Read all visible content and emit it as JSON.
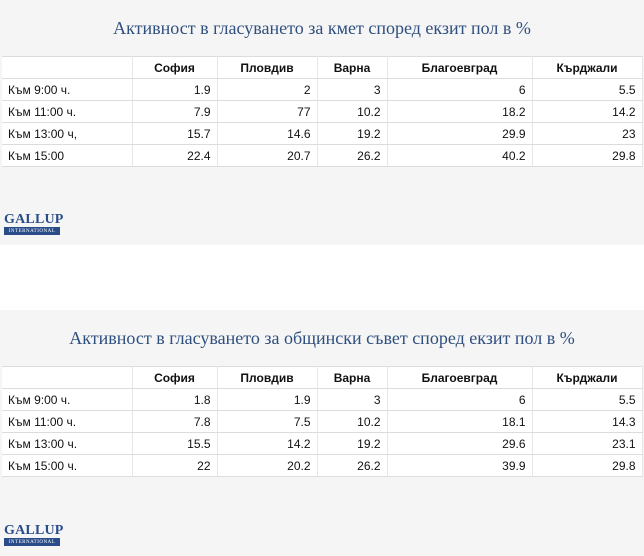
{
  "sections": [
    {
      "title": "Активност в гласуването за кмет според екзит пол в %",
      "table": {
        "header": [
          "София",
          "Пловдив",
          "Варна",
          "Благоевград",
          "Кърджали"
        ],
        "rows": [
          [
            "Към 9:00 ч.",
            1.9,
            2,
            3,
            6,
            5.5
          ],
          [
            "Към 11:00 ч.",
            7.9,
            77,
            10.2,
            18.2,
            14.2
          ],
          [
            "Към 13:00 ч,",
            15.7,
            14.6,
            19.2,
            29.9,
            23
          ],
          [
            "Към 15:00",
            22.4,
            20.7,
            26.2,
            40.2,
            29.8
          ]
        ]
      },
      "logo": {
        "name": "GALLUP",
        "sub": "INTERNATIONAL"
      }
    },
    {
      "title": "Активност в гласуването за общински съвет според екзит пол в %",
      "table": {
        "header": [
          "София",
          "Пловдив",
          "Варна",
          "Благоевград",
          "Кърджали"
        ],
        "rows": [
          [
            "Към 9:00 ч.",
            1.8,
            1.9,
            3,
            6,
            5.5
          ],
          [
            "Към 11:00 ч.",
            7.8,
            7.5,
            10.2,
            18.1,
            14.3
          ],
          [
            "Към 13:00 ч.",
            15.5,
            14.2,
            19.2,
            29.6,
            23.1
          ],
          [
            "Към 15:00 ч.",
            22,
            20.2,
            26.2,
            39.9,
            29.8
          ]
        ]
      },
      "logo": {
        "name": "GALLUP",
        "sub": "INTERNATIONAL"
      }
    }
  ]
}
